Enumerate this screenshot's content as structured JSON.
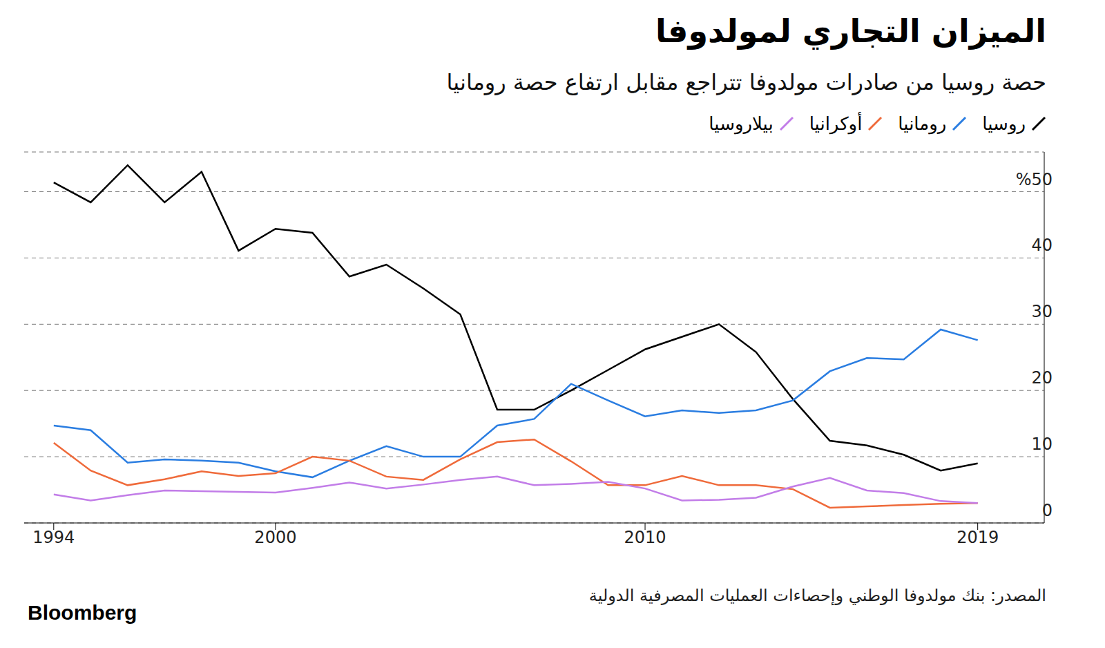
{
  "chart_data": {
    "type": "line",
    "title": "الميزان التجاري لمولدوفا",
    "subtitle": "حصة روسيا من صادرات مولدوفا تتراجع مقابل ارتفاع حصة رومانيا",
    "source": "المصدر: بنك مولدوفا الوطني وإحصاءات العمليات المصرفية الدولية",
    "brand": "Bloomberg",
    "x": [
      1994,
      1995,
      1996,
      1997,
      1998,
      1999,
      2000,
      2001,
      2002,
      2003,
      2004,
      2005,
      2006,
      2007,
      2008,
      2009,
      2010,
      2011,
      2012,
      2013,
      2014,
      2015,
      2016,
      2017,
      2018,
      2019
    ],
    "series": [
      {
        "name": "روسيا",
        "color": "#000000",
        "values": [
          51.4,
          48.4,
          54,
          48.4,
          53,
          41.1,
          44.4,
          43.8,
          37.2,
          39,
          35.4,
          31.5,
          17.1,
          17.1,
          20,
          23.1,
          26.2,
          28.1,
          30,
          25.8,
          18.7,
          12.4,
          11.7,
          10.3,
          7.9,
          9
        ]
      },
      {
        "name": "رومانيا",
        "color": "#2a7de1",
        "values": [
          14.7,
          14,
          9.1,
          9.6,
          9.4,
          9.1,
          7.8,
          6.9,
          9.4,
          11.6,
          10,
          10,
          14.7,
          15.7,
          21,
          18.5,
          16.1,
          17,
          16.6,
          17,
          18.5,
          22.9,
          24.9,
          24.7,
          29.2,
          27.6
        ]
      },
      {
        "name": "أوكرانيا",
        "color": "#ef6a3a",
        "values": [
          12.1,
          7.9,
          5.7,
          6.6,
          7.8,
          7.1,
          7.5,
          10,
          9.4,
          7,
          6.5,
          9.6,
          12.2,
          12.6,
          9.3,
          5.7,
          5.7,
          7.1,
          5.7,
          5.7,
          5.1,
          2.3,
          2.5,
          2.7,
          2.9,
          3
        ]
      },
      {
        "name": "بيلاروسيا",
        "color": "#c27de8",
        "values": [
          4.3,
          3.4,
          4.2,
          4.9,
          4.8,
          4.7,
          4.6,
          5.3,
          6.1,
          5.2,
          5.8,
          6.5,
          7,
          5.7,
          5.9,
          6.2,
          5.2,
          3.4,
          3.5,
          3.8,
          5.5,
          6.8,
          4.9,
          4.5,
          3.3,
          3
        ]
      }
    ],
    "xlim": [
      1993.2,
      2020.8
    ],
    "xticks": [
      1994,
      2000,
      2010,
      2019
    ],
    "ylim": [
      0,
      56
    ],
    "yticks": [
      0,
      10,
      20,
      30,
      40,
      {
        "value": 50,
        "label": "%50"
      }
    ],
    "grid": true,
    "legend": "top-right"
  }
}
